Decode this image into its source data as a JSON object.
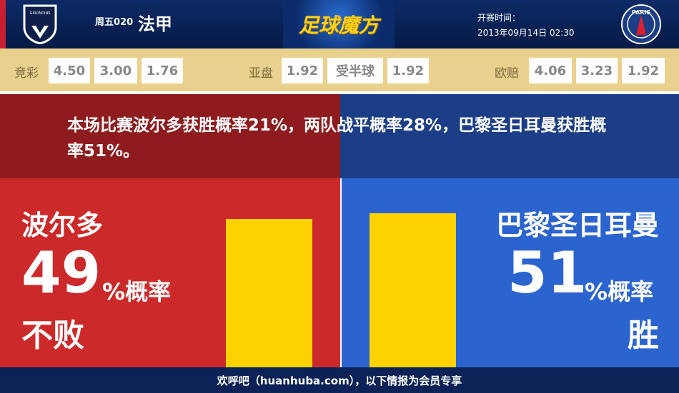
{
  "header": {
    "league_code": "周五020",
    "league": "法甲",
    "brand": "足球魔方",
    "time_label": "开赛时间：",
    "time_value": "2013年09月14日 02:30",
    "home_logo_text": "GIRONDINS DE BORDEAUX",
    "away_logo_text": "PARIS SAINT-GERMAIN"
  },
  "odds": {
    "jingcai": {
      "label": "竞彩",
      "values": [
        "4.50",
        "3.00",
        "1.76"
      ]
    },
    "yapan": {
      "label": "亚盘",
      "values": [
        "1.92",
        "受半球",
        "1.92"
      ]
    },
    "oupei": {
      "label": "欧赔",
      "values": [
        "4.06",
        "3.23",
        "1.92"
      ]
    }
  },
  "summary": "本场比赛波尔多获胜概率21%，两队战平概率28%，巴黎圣日耳曼获胜概率51%。",
  "home": {
    "name": "波尔多",
    "percent": "49",
    "percent_suffix": "%概率",
    "result": "不败",
    "value": 49
  },
  "away": {
    "name": "巴黎圣日耳曼",
    "percent": "51",
    "percent_suffix": "%概率",
    "result": "胜",
    "value": 51
  },
  "colors": {
    "bar": "#ffd200",
    "home": "#cc2a2a",
    "away": "#2b63cf"
  },
  "footer": "欢呼吧（huanhuba.com），以下情报为会员专享"
}
